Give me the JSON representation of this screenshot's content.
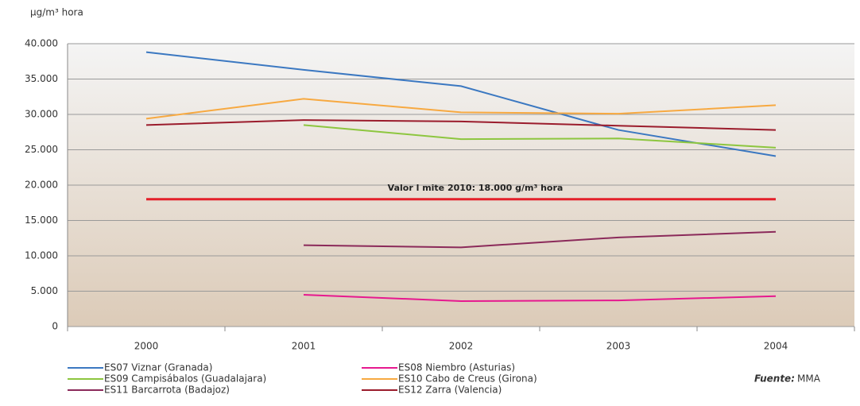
{
  "chart_data": {
    "type": "line",
    "y_axis_label": "µg/m³ hora",
    "categories": [
      "2000",
      "2001",
      "2002",
      "2003",
      "2004"
    ],
    "series": [
      {
        "name": "ES07 Viznar (Granada)",
        "color": "#3b78c1",
        "values": [
          38800,
          36300,
          34000,
          27800,
          24100
        ]
      },
      {
        "name": "ES08 Niembro (Asturias)",
        "color": "#e6198f",
        "values": [
          null,
          4500,
          3600,
          3700,
          4300
        ]
      },
      {
        "name": "ES09 Campisábalos (Guadalajara)",
        "color": "#8dc63f",
        "values": [
          null,
          28500,
          26500,
          26600,
          25300
        ]
      },
      {
        "name": "ES10 Cabo de Creus (Girona)",
        "color": "#f7a941",
        "values": [
          29400,
          32200,
          30300,
          30100,
          31300
        ]
      },
      {
        "name": "ES11 Barcarrota (Badajoz)",
        "color": "#8b2a5a",
        "values": [
          null,
          11500,
          11200,
          12600,
          13400
        ]
      },
      {
        "name": "ES12 Zarra (Valencia)",
        "color": "#9b1c2c",
        "values": [
          28500,
          29200,
          29000,
          28400,
          27800
        ]
      }
    ],
    "limit": {
      "label": "Valor l mite 2010: 18.000  g/m³ hora",
      "value": 18000,
      "color": "#e3202a"
    },
    "ylim": [
      0,
      40000
    ],
    "yticks": [
      0,
      {
        "value": 5000,
        "label": "5.000"
      },
      {
        "value": 10000,
        "label": "10.000"
      },
      {
        "value": 15000,
        "label": "15.000"
      },
      {
        "value": 20000,
        "label": "20.000"
      },
      {
        "value": 25000,
        "label": "25.000"
      },
      {
        "value": 30000,
        "label": "30.000"
      },
      {
        "value": 35000,
        "label": "35.000"
      },
      {
        "value": 40000,
        "label": "40.000"
      }
    ],
    "grid": true,
    "source_label": "Fuente:",
    "source": "MMA"
  }
}
